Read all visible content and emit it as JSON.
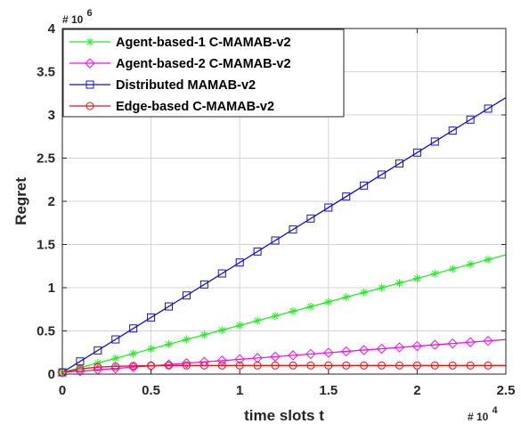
{
  "chart_data": {
    "type": "line",
    "title": "",
    "xlabel": "time slots t",
    "ylabel": "Regret",
    "xlim": [
      0,
      25000
    ],
    "ylim": [
      0,
      4000000
    ],
    "x_multiplier_label": "# 10",
    "x_multiplier_exp": "4",
    "y_multiplier_label": "# 10",
    "y_multiplier_exp": "6",
    "x_ticks": [
      0,
      5000,
      10000,
      15000,
      20000,
      25000
    ],
    "x_tick_labels": [
      "0",
      "0.5",
      "1",
      "1.5",
      "2",
      "2.5"
    ],
    "y_ticks": [
      0,
      500000,
      1000000,
      1500000,
      2000000,
      2500000,
      3000000,
      3500000,
      4000000
    ],
    "y_tick_labels": [
      "0",
      "0.5",
      "1",
      "1.5",
      "2",
      "2.5",
      "3",
      "3.5",
      "4"
    ],
    "grid": true,
    "legend_position": "top-left",
    "marker_x": [
      0,
      1000,
      2000,
      3000,
      4000,
      5000,
      6000,
      7000,
      8000,
      9000,
      10000,
      11000,
      12000,
      13000,
      14000,
      15000,
      16000,
      17000,
      18000,
      19000,
      20000,
      21000,
      22000,
      23000,
      24000
    ],
    "series": [
      {
        "name": "Agent-based-1 C-MAMAB-v2",
        "color": "#22ee22",
        "marker": "asterisk",
        "x": [
          0,
          25000
        ],
        "y": [
          20000,
          1380000
        ]
      },
      {
        "name": "Agent-based-2 C-MAMAB-v2",
        "color": "#ee11ee",
        "marker": "diamond",
        "x": [
          0,
          25000
        ],
        "y": [
          20000,
          400000
        ]
      },
      {
        "name": "Distributed MAMAB-v2",
        "color": "#1111cc",
        "marker": "square",
        "x": [
          0,
          25000
        ],
        "y": [
          20000,
          3200000
        ]
      },
      {
        "name": "Edge-based C-MAMAB-v2",
        "color": "#ee1111",
        "marker": "circle",
        "x": [
          0,
          1000,
          2000,
          3000,
          4000,
          5000,
          6000,
          7000,
          8000,
          25000
        ],
        "y": [
          20000,
          60000,
          80000,
          90000,
          95000,
          98000,
          100000,
          100000,
          100000,
          100000
        ]
      }
    ]
  }
}
